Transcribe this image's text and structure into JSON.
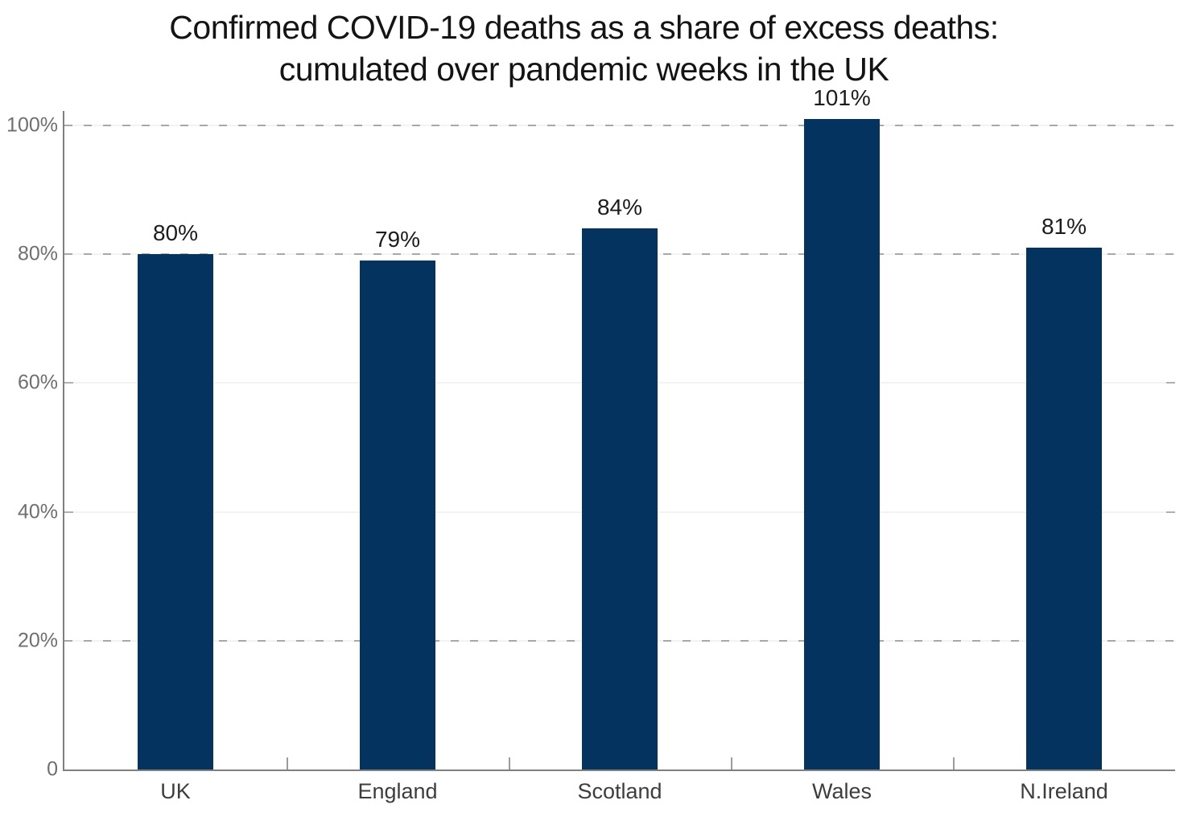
{
  "title": {
    "line1": "Confirmed COVID-19 deaths as a share of excess deaths:",
    "line2": "cumulated over pandemic weeks in the UK"
  },
  "chart_data": {
    "type": "bar",
    "title": "Confirmed COVID-19 deaths as a share of excess deaths: cumulated over pandemic weeks in the UK",
    "categories": [
      "UK",
      "England",
      "Scotland",
      "Wales",
      "N.Ireland"
    ],
    "values": [
      80,
      79,
      84,
      101,
      81
    ],
    "value_labels": [
      "80%",
      "79%",
      "84%",
      "101%",
      "81%"
    ],
    "xlabel": "",
    "ylabel": "",
    "ylim": [
      0,
      105
    ],
    "yticks": [
      {
        "value": 0,
        "label": "0"
      },
      {
        "value": 20,
        "label": "20%"
      },
      {
        "value": 40,
        "label": "40%"
      },
      {
        "value": 60,
        "label": "60%"
      },
      {
        "value": 80,
        "label": "80%"
      },
      {
        "value": 100,
        "label": "100%"
      }
    ],
    "dashed_gridlines": [
      20,
      80,
      100
    ],
    "grid": "horizontal-only",
    "legend": "none",
    "colors": {
      "bar": "#03335e",
      "dashed_gridline": "#a8a8a8",
      "faint_gridline": "#f3f3f3",
      "axis": "#7f7f7f"
    }
  }
}
